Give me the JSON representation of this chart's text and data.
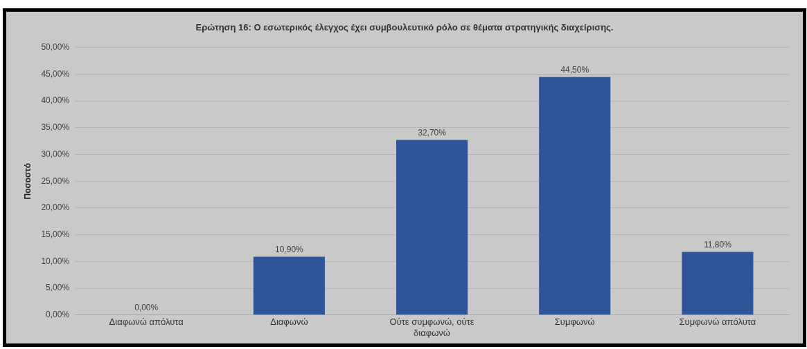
{
  "chart_data": {
    "type": "bar",
    "title": "Ερώτηση 16: Ο εσωτερικός έλεγχος έχει συμβουλευτικό ρόλο σε θέματα στρατηγικής διαχείρισης.",
    "ylabel": "Ποσοστό",
    "categories": [
      "Διαφωνώ απόλυτα",
      "Διαφωνώ",
      "Ούτε συμφωνώ, ούτε διαφωνώ",
      "Συμφωνώ",
      "Συμφωνώ απόλυτα"
    ],
    "values": [
      0,
      10.9,
      32.7,
      44.5,
      11.8
    ],
    "value_labels": [
      "0,00%",
      "10,90%",
      "32,70%",
      "44,50%",
      "11,80%"
    ],
    "color": "#2f5597",
    "ylim": [
      0,
      50
    ],
    "yticks": [
      {
        "value": 0,
        "label": "0,00%"
      },
      {
        "value": 5,
        "label": "5,00%"
      },
      {
        "value": 10,
        "label": "10,00%"
      },
      {
        "value": 15,
        "label": "15,00%"
      },
      {
        "value": 20,
        "label": "20,00%"
      },
      {
        "value": 25,
        "label": "25,00%"
      },
      {
        "value": 30,
        "label": "30,00%"
      },
      {
        "value": 35,
        "label": "35,00%"
      },
      {
        "value": 40,
        "label": "40,00%"
      },
      {
        "value": 45,
        "label": "45,00%"
      },
      {
        "value": 50,
        "label": "50,00%"
      }
    ],
    "grid": "y",
    "legend": false
  }
}
